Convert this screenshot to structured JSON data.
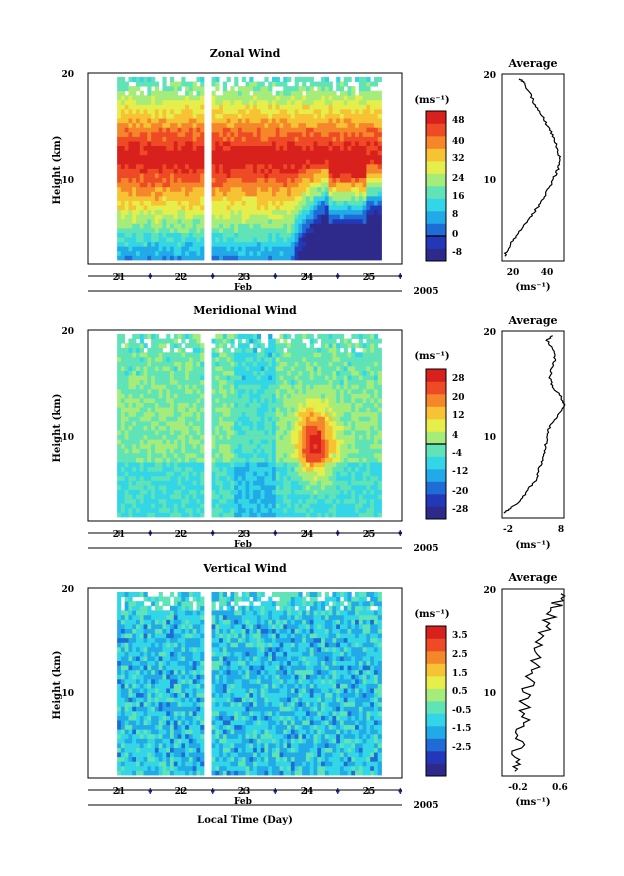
{
  "figure": {
    "xlabel": "Local Time (Day)",
    "time_axis": {
      "day_labels": [
        "21",
        "22",
        "23",
        "24",
        "25"
      ],
      "month_label": "Feb",
      "year_label": "2005"
    }
  },
  "colors": {
    "colormap": [
      "#2e2a8c",
      "#2338b8",
      "#1f6cd6",
      "#22a9e8",
      "#33d6e6",
      "#5fe3b7",
      "#a6ec7a",
      "#e6ee4b",
      "#f7c233",
      "#f5872a",
      "#ef4a26",
      "#d8201c"
    ]
  },
  "chart_data": [
    {
      "type": "heatmap",
      "title": "Zonal Wind",
      "ylabel": "Height (km)",
      "ylim": [
        0,
        20
      ],
      "yticks": [
        "10",
        "20"
      ],
      "x_days": [
        "21",
        "22",
        "23",
        "24",
        "25"
      ],
      "colorbar": {
        "unit": "(ms⁻¹)",
        "ticks": [
          "48",
          "40",
          "32",
          "24",
          "16",
          "8",
          "0",
          "-8"
        ],
        "min": -8,
        "max": 52,
        "zero_contour": 0
      },
      "missing_gap_day": 22.4
    },
    {
      "type": "line",
      "title": "Average",
      "xlabel": "(ms⁻¹)",
      "ylim": [
        0,
        20
      ],
      "yticks": [
        "10",
        "20"
      ],
      "xticks": [
        "20",
        "40"
      ],
      "xlim": [
        10,
        55
      ],
      "height_km": [
        0.5,
        1,
        2,
        3,
        4,
        5,
        6,
        7,
        8,
        9,
        10,
        11,
        12,
        13,
        14,
        15,
        16,
        17,
        18,
        19,
        19.5
      ],
      "speed": [
        12,
        13,
        17,
        22,
        27,
        32,
        37,
        41,
        45,
        48,
        51,
        52,
        50,
        48,
        45,
        41,
        37,
        33,
        30,
        26,
        23
      ]
    },
    {
      "type": "heatmap",
      "title": "Meridional Wind",
      "ylabel": "Height (km)",
      "ylim": [
        0,
        20
      ],
      "yticks": [
        "10",
        "20"
      ],
      "x_days": [
        "21",
        "22",
        "23",
        "24",
        "25"
      ],
      "colorbar": {
        "unit": "(ms⁻¹)",
        "ticks": [
          "28",
          "20",
          "12",
          "4",
          "-4",
          "-12",
          "-20",
          "-28"
        ],
        "min": -32,
        "max": 32,
        "zero_contour": 0
      },
      "missing_gap_day": 22.4
    },
    {
      "type": "line",
      "title": "Average",
      "xlabel": "(ms⁻¹)",
      "ylim": [
        0,
        20
      ],
      "yticks": [
        "10",
        "20"
      ],
      "xticks": [
        "-2",
        "8"
      ],
      "xlim": [
        -3,
        8
      ],
      "height_km": [
        0.5,
        1,
        2,
        3,
        4,
        5,
        6,
        7,
        8,
        9,
        10,
        11,
        12,
        13,
        14,
        15,
        16,
        17,
        18,
        19,
        19.5
      ],
      "speed": [
        -2.8,
        -1.5,
        0.5,
        1.5,
        3,
        3.5,
        4,
        4.5,
        4.8,
        5.2,
        5.5,
        7,
        8,
        7.5,
        6,
        5.5,
        5.8,
        6.5,
        6,
        5,
        6
      ]
    },
    {
      "type": "heatmap",
      "title": "Vertical Wind",
      "ylabel": "Height (km)",
      "ylim": [
        0,
        20
      ],
      "yticks": [
        "10",
        "20"
      ],
      "x_days": [
        "21",
        "22",
        "23",
        "24",
        "25"
      ],
      "colorbar": {
        "unit": "(ms⁻¹)",
        "ticks": [
          "3.5",
          "2.5",
          "1.5",
          "0.5",
          "-0.5",
          "-1.5",
          "-2.5"
        ],
        "min": -3,
        "max": 4
      },
      "missing_gap_day": 22.4
    },
    {
      "type": "line",
      "title": "Average",
      "xlabel": "(ms⁻¹)",
      "ylim": [
        0,
        20
      ],
      "yticks": [
        "10",
        "20"
      ],
      "xticks": [
        "-0.2",
        "0.6"
      ],
      "xlim": [
        -0.4,
        0.6
      ],
      "height_km": [
        0.5,
        2,
        4,
        6,
        8,
        10,
        12,
        14,
        16,
        18,
        19.5
      ],
      "speed": [
        -0.12,
        -0.15,
        -0.1,
        -0.05,
        -0.02,
        0.05,
        0.12,
        0.2,
        0.32,
        0.45,
        0.55
      ]
    }
  ]
}
